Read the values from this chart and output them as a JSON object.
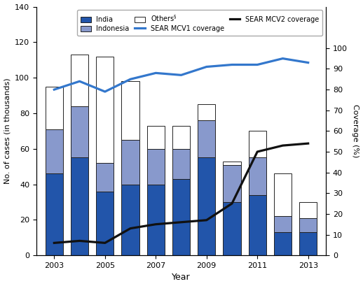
{
  "years": [
    2003,
    2004,
    2005,
    2006,
    2007,
    2008,
    2009,
    2010,
    2011,
    2012,
    2013
  ],
  "india": [
    46,
    55,
    36,
    40,
    40,
    43,
    55,
    30,
    34,
    13,
    13
  ],
  "indonesia": [
    25,
    29,
    16,
    25,
    20,
    17,
    21,
    21,
    21,
    9,
    8
  ],
  "others": [
    24,
    29,
    60,
    33,
    13,
    13,
    9,
    2,
    15,
    24,
    9
  ],
  "mcv1": [
    80,
    84,
    79,
    85,
    88,
    87,
    91,
    92,
    92,
    95,
    93
  ],
  "mcv2": [
    6,
    7,
    6,
    13,
    15,
    16,
    17,
    25,
    50,
    53,
    54
  ],
  "color_india": "#2255aa",
  "color_indonesia": "#8899cc",
  "color_others": "#ffffff",
  "color_mcv1": "#3377cc",
  "color_mcv2": "#111111",
  "ylabel_left": "No. of cases (in thousands)",
  "ylabel_right": "Coverage (%)",
  "xlabel": "Year",
  "ylim_left": [
    0,
    140
  ],
  "ylim_right": [
    0,
    120
  ],
  "yticks_left": [
    0,
    20,
    40,
    60,
    80,
    100,
    120,
    140
  ],
  "yticks_right_vals": [
    0,
    10,
    20,
    30,
    40,
    50,
    60,
    70,
    80,
    90,
    100
  ],
  "bar_width": 0.7,
  "bar_edgecolor": "#222222",
  "figsize": [
    5.18,
    4.09
  ],
  "dpi": 100
}
